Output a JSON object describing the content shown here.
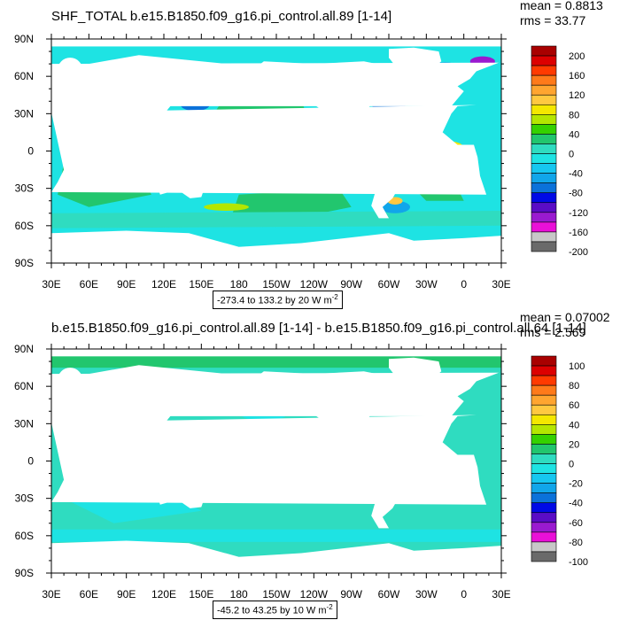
{
  "panels": [
    {
      "title": "SHF_TOTAL b.e15.B1850.f09_g16.pi_control.all.89 [1-14]",
      "stats": {
        "mean": "mean = 0.8813",
        "rms": "rms = 33.77"
      },
      "range_label": "-273.4 to 133.2 by 20",
      "units": "W m",
      "units_exp": "-2"
    },
    {
      "title": "b.e15.B1850.f09_g16.pi_control.all.89 [1-14] - b.e15.B1850.f09_g16.pi_control.all.64 [1-14]",
      "stats": {
        "mean": "mean = 0.07002",
        "rms": "rms = 2.569"
      },
      "range_label": "-45.2 to 43.25 by 10",
      "units": "W m",
      "units_exp": "-2"
    }
  ],
  "chart_data": [
    {
      "type": "heatmap",
      "title": "SHF_TOTAL b.e15.B1850.f09_g16.pi_control.all.89 [1-14]",
      "x_ticks": [
        "30E",
        "60E",
        "90E",
        "120E",
        "150E",
        "180",
        "150W",
        "120W",
        "90W",
        "60W",
        "30W",
        "0",
        "30E"
      ],
      "y_ticks": [
        "90N",
        "60N",
        "30N",
        "0",
        "30S",
        "60S",
        "90S"
      ],
      "xlim": [
        30,
        390
      ],
      "ylim": [
        -90,
        90
      ],
      "colorbar_levels": [
        "200",
        "160",
        "120",
        "80",
        "40",
        "0",
        "-40",
        "-80",
        "-120",
        "-160",
        "-200"
      ],
      "colorbar_colors": [
        "#a90000",
        "#dc0000",
        "#ff3a00",
        "#ff7a1a",
        "#ffa530",
        "#ffc840",
        "#f4e700",
        "#b4e600",
        "#35d100",
        "#22c66e",
        "#2fdcc0",
        "#1ee3e3",
        "#16c7f0",
        "#11a6ea",
        "#0b72da",
        "#0009e6",
        "#5a0cc6",
        "#9a1ad0",
        "#ea10d8",
        "#c8c8c8",
        "#6a6a6a"
      ],
      "mean": 0.8813,
      "rms": 33.77,
      "contour_min": -273.4,
      "contour_max": 133.2,
      "contour_interval": 20,
      "units": "W m-2"
    },
    {
      "type": "heatmap",
      "title": "b.e15.B1850.f09_g16.pi_control.all.89 [1-14] - b.e15.B1850.f09_g16.pi_control.all.64 [1-14]",
      "x_ticks": [
        "30E",
        "60E",
        "90E",
        "120E",
        "150E",
        "180",
        "150W",
        "120W",
        "90W",
        "60W",
        "30W",
        "0",
        "30E"
      ],
      "y_ticks": [
        "90N",
        "60N",
        "30N",
        "0",
        "30S",
        "60S",
        "90S"
      ],
      "xlim": [
        30,
        390
      ],
      "ylim": [
        -90,
        90
      ],
      "colorbar_levels": [
        "100",
        "80",
        "60",
        "40",
        "20",
        "0",
        "-20",
        "-40",
        "-60",
        "-80",
        "-100"
      ],
      "colorbar_colors": [
        "#a90000",
        "#dc0000",
        "#ff3a00",
        "#ff7a1a",
        "#ffa530",
        "#ffc840",
        "#f4e700",
        "#b4e600",
        "#35d100",
        "#22c66e",
        "#2fdcc0",
        "#1ee3e3",
        "#16c7f0",
        "#11a6ea",
        "#0b72da",
        "#0009e6",
        "#5a0cc6",
        "#9a1ad0",
        "#ea10d8",
        "#c8c8c8",
        "#6a6a6a"
      ],
      "mean": 0.07002,
      "rms": 2.569,
      "contour_min": -45.2,
      "contour_max": 43.25,
      "contour_interval": 10,
      "units": "W m-2"
    }
  ]
}
